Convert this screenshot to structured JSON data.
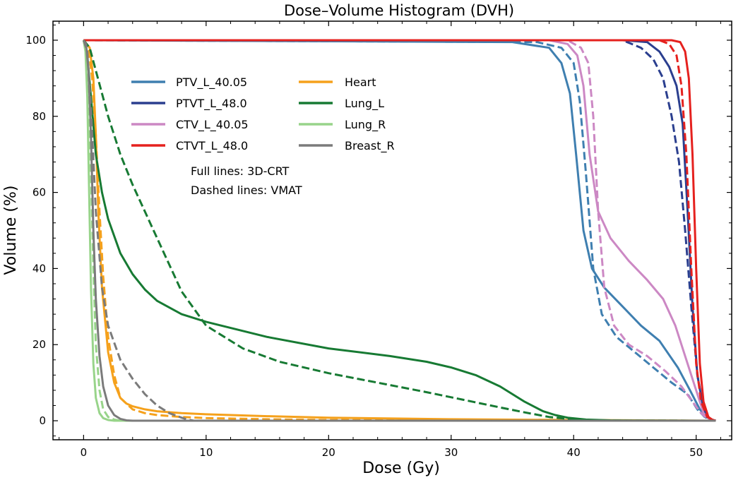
{
  "chart_data": {
    "type": "line",
    "title": "Dose–Volume Histogram (DVH)",
    "xlabel": "Dose (Gy)",
    "ylabel": "Volume (%)",
    "xlim": [
      -2.5,
      52.9
    ],
    "ylim": [
      -5,
      105
    ],
    "xticks": [
      "0",
      "10",
      "20",
      "30",
      "40",
      "50"
    ],
    "yticks": [
      "0",
      "20",
      "40",
      "60",
      "80",
      "100"
    ],
    "grid": false,
    "legend_position": "upper-left inside",
    "annotations": [
      "Full lines: 3D-CRT",
      "Dashed lines: VMAT"
    ],
    "series": [
      {
        "name": "PTV_L_40.05",
        "color": "#3f7fb0",
        "plan": "3D-CRT",
        "x": [
          0,
          35,
          38,
          39,
          39.7,
          40.2,
          40.8,
          41.5,
          42.5,
          44,
          45.5,
          47,
          48.5,
          49.5,
          50.3,
          50.8,
          51.3,
          51.6
        ],
        "y": [
          100,
          99.5,
          98,
          94,
          86,
          70,
          50,
          40,
          35,
          30,
          25,
          21,
          14,
          8,
          3,
          1,
          0.2,
          0
        ]
      },
      {
        "name": "PTV_L_40.05",
        "color": "#3f7fb0",
        "plan": "VMAT",
        "x": [
          0,
          37,
          39,
          40,
          40.5,
          41,
          41.6,
          42.3,
          43.5,
          45,
          46.5,
          48,
          49.3,
          50.1,
          50.7,
          51.2,
          51.6
        ],
        "y": [
          100,
          99.5,
          98,
          94,
          84,
          65,
          40,
          28,
          22,
          18,
          14,
          10,
          7,
          3,
          1,
          0.2,
          0
        ]
      },
      {
        "name": "PTVT_L_48.0",
        "color": "#2b3f8f",
        "plan": "3D-CRT",
        "x": [
          0,
          44,
          46,
          47,
          47.8,
          48.4,
          48.9,
          49.3,
          49.7,
          50.1,
          50.6,
          51.1,
          51.6
        ],
        "y": [
          100,
          100,
          99.5,
          97,
          93,
          88,
          78,
          55,
          30,
          12,
          3,
          0.5,
          0
        ]
      },
      {
        "name": "PTVT_L_48.0",
        "color": "#2b3f8f",
        "plan": "VMAT",
        "x": [
          0,
          44,
          45.5,
          46.5,
          47.3,
          48,
          48.6,
          49.1,
          49.6,
          50.1,
          50.6,
          51.1,
          51.6
        ],
        "y": [
          100,
          100,
          98,
          95,
          90,
          80,
          68,
          50,
          30,
          12,
          3,
          0.5,
          0
        ]
      },
      {
        "name": "CTV_L_40.05",
        "color": "#cc88c4",
        "plan": "3D-CRT",
        "x": [
          0,
          38,
          39.5,
          40.3,
          40.8,
          41.3,
          42,
          43,
          44.5,
          46,
          47.3,
          48.3,
          49.2,
          50,
          50.6,
          51.1,
          51.6
        ],
        "y": [
          100,
          100,
          99,
          96,
          88,
          70,
          55,
          48,
          42,
          37,
          32,
          25,
          16,
          8,
          2,
          0.3,
          0
        ]
      },
      {
        "name": "CTV_L_40.05",
        "color": "#cc88c4",
        "plan": "VMAT",
        "x": [
          0,
          39.5,
          40.6,
          41.2,
          41.6,
          42,
          42.5,
          43.3,
          44.5,
          46,
          47.5,
          48.8,
          49.7,
          50.4,
          51,
          51.6
        ],
        "y": [
          100,
          100,
          98,
          94,
          80,
          55,
          35,
          25,
          20,
          17,
          13,
          9,
          5,
          2,
          0.3,
          0
        ]
      },
      {
        "name": "CTVT_L_48.0",
        "color": "#e5211e",
        "plan": "3D-CRT",
        "x": [
          0,
          48,
          48.7,
          49.1,
          49.4,
          49.7,
          50,
          50.3,
          50.6,
          51,
          51.3,
          51.6
        ],
        "y": [
          100,
          100,
          99.5,
          97,
          90,
          70,
          40,
          15,
          5,
          1,
          0.3,
          0
        ]
      },
      {
        "name": "CTVT_L_48.0",
        "color": "#e5211e",
        "plan": "VMAT",
        "x": [
          0,
          47,
          47.8,
          48.4,
          48.8,
          49.2,
          49.6,
          50,
          50.4,
          50.9,
          51.3,
          51.6
        ],
        "y": [
          100,
          100,
          99,
          96,
          88,
          70,
          40,
          15,
          5,
          1,
          0.3,
          0
        ]
      },
      {
        "name": "Heart",
        "color": "#f5a11c",
        "plan": "3D-CRT",
        "x": [
          0,
          0.5,
          0.8,
          1,
          1.2,
          1.5,
          2,
          2.5,
          3,
          3.5,
          4,
          5,
          6,
          8,
          10,
          15,
          20,
          30,
          40,
          51.6
        ],
        "y": [
          100,
          98,
          90,
          75,
          55,
          35,
          18,
          10,
          6,
          4.5,
          3.8,
          3,
          2.5,
          2,
          1.7,
          1.2,
          0.8,
          0.4,
          0.2,
          0
        ]
      },
      {
        "name": "Heart",
        "color": "#f5a11c",
        "plan": "VMAT",
        "x": [
          0,
          0.4,
          0.7,
          1,
          1.3,
          1.6,
          2,
          2.5,
          3,
          4,
          5,
          6,
          8,
          10,
          15,
          20,
          30,
          40,
          51.6
        ],
        "y": [
          100,
          98,
          90,
          75,
          55,
          38,
          22,
          12,
          6,
          3,
          2,
          1.5,
          1,
          0.7,
          0.4,
          0.2,
          0.1,
          0.05,
          0
        ]
      },
      {
        "name": "Lung_L",
        "color": "#177a33",
        "plan": "3D-CRT",
        "x": [
          0,
          0.3,
          0.6,
          1,
          1.5,
          2,
          3,
          4,
          5,
          6,
          8,
          10,
          15,
          20,
          25,
          28,
          30,
          32,
          34,
          36,
          37.5,
          38.5,
          39.5,
          41,
          43,
          45,
          51.6
        ],
        "y": [
          100,
          96,
          85,
          70,
          60,
          53,
          44,
          38.5,
          34.5,
          31.5,
          28,
          26,
          22,
          19,
          17,
          15.5,
          14,
          12,
          9,
          5,
          2.5,
          1.5,
          0.8,
          0.3,
          0.1,
          0.05,
          0
        ]
      },
      {
        "name": "Lung_L",
        "color": "#177a33",
        "plan": "VMAT",
        "x": [
          0,
          0.5,
          1,
          1.5,
          2,
          3,
          4,
          5,
          6,
          8,
          10,
          13,
          16,
          20,
          24,
          28,
          31,
          34,
          36,
          38,
          39.5,
          41,
          43,
          51.6
        ],
        "y": [
          100,
          98,
          92,
          86,
          80,
          70,
          62,
          55,
          48,
          34,
          25,
          19,
          15.5,
          12.5,
          10,
          7.5,
          5.5,
          3.5,
          2.2,
          1,
          0.5,
          0.2,
          0.05,
          0
        ]
      },
      {
        "name": "Lung_R",
        "color": "#98d48a",
        "plan": "3D-CRT",
        "x": [
          0,
          0.15,
          0.3,
          0.45,
          0.6,
          0.8,
          1,
          1.3,
          1.6,
          2,
          2.5,
          51.6
        ],
        "y": [
          100,
          97,
          85,
          60,
          35,
          15,
          6,
          2,
          0.7,
          0.2,
          0,
          0
        ]
      },
      {
        "name": "Lung_R",
        "color": "#98d48a",
        "plan": "VMAT",
        "x": [
          0,
          0.2,
          0.4,
          0.6,
          0.8,
          1,
          1.3,
          1.6,
          2,
          2.5,
          3,
          51.6
        ],
        "y": [
          100,
          97,
          88,
          65,
          40,
          20,
          8,
          3,
          1,
          0.3,
          0,
          0
        ]
      },
      {
        "name": "Breast_R",
        "color": "#7b7b7b",
        "plan": "3D-CRT",
        "x": [
          0,
          0.2,
          0.4,
          0.6,
          0.8,
          1,
          1.3,
          1.6,
          2,
          2.5,
          3,
          3.5,
          4,
          51.6
        ],
        "y": [
          100,
          99,
          92,
          75,
          50,
          32,
          17,
          9,
          4,
          1.5,
          0.5,
          0.1,
          0,
          0
        ]
      },
      {
        "name": "Breast_R",
        "color": "#7b7b7b",
        "plan": "VMAT",
        "x": [
          0,
          0.3,
          0.6,
          1,
          1.5,
          2,
          3,
          4,
          5,
          6,
          7,
          8,
          8.5,
          9,
          51.6
        ],
        "y": [
          100,
          97,
          82,
          55,
          35,
          25,
          16,
          11,
          7,
          4,
          2,
          0.8,
          0.3,
          0,
          0
        ]
      }
    ],
    "legend": {
      "col1": [
        "PTV_L_40.05",
        "PTVT_L_48.0",
        "CTV_L_40.05",
        "CTVT_L_48.0"
      ],
      "col2": [
        "Heart",
        "Lung_L",
        "Lung_R",
        "Breast_R"
      ]
    }
  }
}
